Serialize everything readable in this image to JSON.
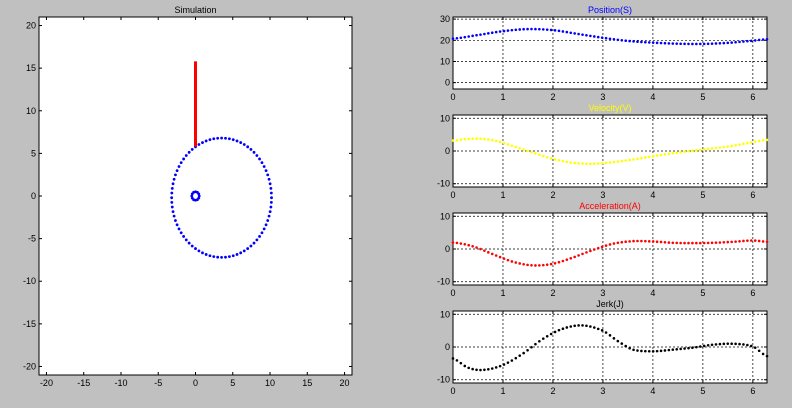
{
  "window": {
    "background": "#c0c0c0"
  },
  "chart_data": [
    {
      "type": "scatter",
      "title": "Simulation",
      "title_color": "#000000",
      "xlim": [
        -21,
        21
      ],
      "ylim": [
        -21,
        21
      ],
      "xticks": [
        -20,
        -15,
        -10,
        -5,
        0,
        5,
        10,
        15,
        20
      ],
      "yticks": [
        -20,
        -15,
        -10,
        -5,
        0,
        5,
        10,
        15,
        20
      ],
      "grid": false,
      "series": [
        {
          "kind": "points",
          "color": "#0000ff",
          "shape": "ellipse-cam",
          "cx": 3.5,
          "cy": -0.2,
          "rx": 6.7,
          "ry": 7.0,
          "n": 80
        },
        {
          "kind": "points",
          "color": "#0000ff",
          "shape": "circle",
          "cx": 0,
          "cy": 0,
          "r": 0.5,
          "n": 12
        },
        {
          "kind": "segment",
          "color": "#ff0000",
          "x": [
            0,
            0
          ],
          "y": [
            5.8,
            15.8
          ]
        }
      ]
    },
    {
      "type": "line",
      "title": "Position(S)",
      "title_color": "#0000ff",
      "marker_color": "#0000ff",
      "xlim": [
        0,
        6.283
      ],
      "ylim": [
        -3,
        31
      ],
      "xticks": [
        0,
        1,
        2,
        3,
        4,
        5,
        6
      ],
      "yticks": [
        0,
        10,
        20,
        30
      ],
      "grid": true,
      "x": [
        0,
        0.5,
        1.0,
        1.5,
        2.0,
        2.5,
        3.0,
        3.5,
        4.0,
        4.5,
        5.0,
        5.5,
        6.0,
        6.283
      ],
      "y": [
        20.8,
        22.5,
        24.3,
        25.3,
        24.8,
        23.0,
        21.2,
        19.7,
        18.9,
        18.4,
        18.3,
        18.8,
        19.8,
        20.5
      ]
    },
    {
      "type": "line",
      "title": "Velocity(V)",
      "title_color": "#ffff00",
      "marker_color": "#ffff00",
      "xlim": [
        0,
        6.283
      ],
      "ylim": [
        -11,
        11
      ],
      "xticks": [
        0,
        1,
        2,
        3,
        4,
        5,
        6
      ],
      "yticks": [
        -10,
        0,
        10
      ],
      "grid": true,
      "x": [
        0,
        0.4,
        0.8,
        1.2,
        1.6,
        2.0,
        2.4,
        2.8,
        3.2,
        3.6,
        4.0,
        4.4,
        4.8,
        5.2,
        5.6,
        6.0,
        6.283
      ],
      "y": [
        3.2,
        3.8,
        3.3,
        1.5,
        -0.5,
        -2.4,
        -3.6,
        -3.9,
        -3.4,
        -2.6,
        -1.6,
        -0.7,
        0.1,
        0.8,
        1.6,
        2.7,
        3.4
      ]
    },
    {
      "type": "line",
      "title": "Acceleration(A)",
      "title_color": "#ff0000",
      "marker_color": "#ff0000",
      "xlim": [
        0,
        6.283
      ],
      "ylim": [
        -11,
        11
      ],
      "xticks": [
        0,
        1,
        2,
        3,
        4,
        5,
        6
      ],
      "yticks": [
        -10,
        0,
        10
      ],
      "grid": true,
      "x": [
        0,
        0.4,
        0.8,
        1.2,
        1.6,
        2.0,
        2.4,
        2.8,
        3.2,
        3.6,
        4.0,
        4.4,
        4.8,
        5.2,
        5.6,
        6.0,
        6.283
      ],
      "y": [
        2.0,
        0.8,
        -1.6,
        -3.9,
        -5.0,
        -4.5,
        -2.6,
        -0.3,
        1.6,
        2.4,
        2.3,
        1.9,
        1.8,
        1.9,
        2.2,
        2.6,
        2.2
      ]
    },
    {
      "type": "line",
      "title": "Jerk(J)",
      "title_color": "#000000",
      "marker_color": "#000000",
      "xlim": [
        0,
        6.283
      ],
      "ylim": [
        -11,
        11
      ],
      "xticks": [
        0,
        1,
        2,
        3,
        4,
        5,
        6
      ],
      "yticks": [
        -10,
        0,
        10
      ],
      "grid": true,
      "x": [
        0,
        0.3,
        0.6,
        1.0,
        1.4,
        1.8,
        2.2,
        2.6,
        3.0,
        3.3,
        3.6,
        4.0,
        4.4,
        4.8,
        5.2,
        5.6,
        6.0,
        6.283
      ],
      "y": [
        -3.5,
        -6.3,
        -7.0,
        -5.5,
        -2.0,
        2.5,
        5.6,
        6.6,
        5.0,
        1.8,
        -0.8,
        -1.3,
        -0.8,
        -0.2,
        0.7,
        1.0,
        0.2,
        -2.8
      ]
    }
  ]
}
